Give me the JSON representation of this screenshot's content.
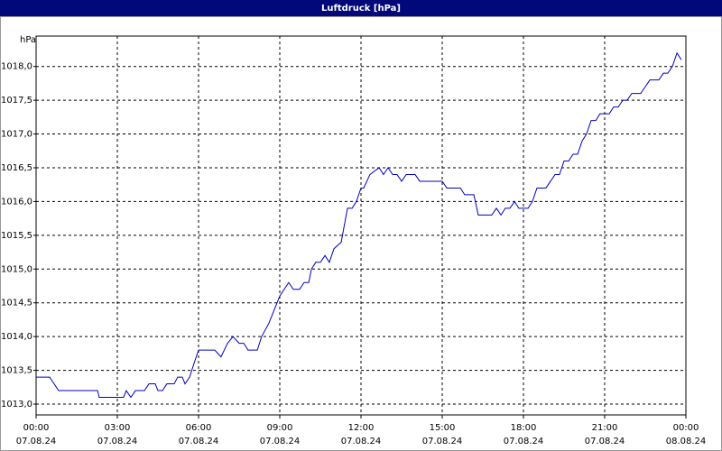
{
  "chart_data": {
    "type": "line",
    "title": "Luftdruck [hPa]",
    "y_label": "hPa",
    "x": [
      0,
      0.5,
      0.83,
      2.27,
      2.33,
      3.23,
      3.33,
      3.5,
      3.67,
      4,
      4.17,
      4.4,
      4.5,
      4.67,
      4.83,
      5.1,
      5.23,
      5.4,
      5.5,
      5.67,
      5.83,
      6,
      6.6,
      6.83,
      7.07,
      7.27,
      7.5,
      7.67,
      7.83,
      8.17,
      8.33,
      8.6,
      9,
      9.33,
      9.5,
      9.73,
      9.9,
      10.07,
      10.17,
      10.33,
      10.5,
      10.67,
      10.83,
      11,
      11.27,
      11.5,
      11.67,
      11.83,
      12,
      12.1,
      12.33,
      12.67,
      12.83,
      13,
      13.17,
      13.33,
      13.5,
      13.67,
      14,
      14.17,
      15,
      15.17,
      15.67,
      15.83,
      16.17,
      16.33,
      16.83,
      17,
      17.17,
      17.33,
      17.5,
      17.67,
      17.83,
      18.17,
      18.33,
      18.5,
      18.83,
      19,
      19.17,
      19.33,
      19.5,
      19.67,
      19.83,
      20,
      20.17,
      20.33,
      20.5,
      20.67,
      20.83,
      21.17,
      21.33,
      21.5,
      21.67,
      21.83,
      22,
      22.33,
      22.5,
      22.67,
      23,
      23.17,
      23.33,
      23.5,
      23.67,
      23.83
    ],
    "series": [
      {
        "name": "Luftdruck",
        "color": "#0000c0",
        "values": [
          1013.4,
          1013.4,
          1013.2,
          1013.2,
          1013.1,
          1013.1,
          1013.2,
          1013.1,
          1013.2,
          1013.2,
          1013.3,
          1013.3,
          1013.2,
          1013.2,
          1013.3,
          1013.3,
          1013.4,
          1013.4,
          1013.3,
          1013.4,
          1013.6,
          1013.8,
          1013.8,
          1013.7,
          1013.9,
          1014.0,
          1013.9,
          1013.9,
          1013.8,
          1013.8,
          1014.0,
          1014.2,
          1014.6,
          1014.8,
          1014.7,
          1014.7,
          1014.8,
          1014.8,
          1015.0,
          1015.1,
          1015.1,
          1015.2,
          1015.1,
          1015.3,
          1015.4,
          1015.9,
          1015.9,
          1016.0,
          1016.2,
          1016.2,
          1016.4,
          1016.5,
          1016.4,
          1016.5,
          1016.4,
          1016.4,
          1016.3,
          1016.4,
          1016.4,
          1016.3,
          1016.3,
          1016.2,
          1016.2,
          1016.1,
          1016.1,
          1015.8,
          1015.8,
          1015.9,
          1015.8,
          1015.9,
          1015.9,
          1016.0,
          1015.9,
          1015.9,
          1016.0,
          1016.2,
          1016.2,
          1016.3,
          1016.4,
          1016.4,
          1016.6,
          1016.6,
          1016.7,
          1016.7,
          1016.9,
          1017.0,
          1017.2,
          1017.2,
          1017.3,
          1017.3,
          1017.4,
          1017.4,
          1017.5,
          1017.5,
          1017.6,
          1017.6,
          1017.7,
          1017.8,
          1017.8,
          1017.9,
          1017.9,
          1018.0,
          1018.2,
          1018.1
        ]
      }
    ],
    "xlim": [
      0,
      24
    ],
    "ylim": [
      1012.84,
      1018.45
    ],
    "xticks": [
      {
        "value": 0,
        "label": "00:00",
        "date": "07.08.24"
      },
      {
        "value": 3,
        "label": "03:00",
        "date": "07.08.24"
      },
      {
        "value": 6,
        "label": "06:00",
        "date": "07.08.24"
      },
      {
        "value": 9,
        "label": "09:00",
        "date": "07.08.24"
      },
      {
        "value": 12,
        "label": "12:00",
        "date": "07.08.24"
      },
      {
        "value": 15,
        "label": "15:00",
        "date": "07.08.24"
      },
      {
        "value": 18,
        "label": "18:00",
        "date": "07.08.24"
      },
      {
        "value": 21,
        "label": "21:00",
        "date": "07.08.24"
      },
      {
        "value": 24,
        "label": "00:00",
        "date": "08.08.24"
      }
    ],
    "yticks": [
      {
        "value": 1013,
        "label": "1013,0"
      },
      {
        "value": 1013.5,
        "label": "1013,5"
      },
      {
        "value": 1014,
        "label": "1014,0"
      },
      {
        "value": 1014.5,
        "label": "1014,5"
      },
      {
        "value": 1015,
        "label": "1015,0"
      },
      {
        "value": 1015.5,
        "label": "1015,5"
      },
      {
        "value": 1016,
        "label": "1016,0"
      },
      {
        "value": 1016.5,
        "label": "1016,5"
      },
      {
        "value": 1017,
        "label": "1017,0"
      },
      {
        "value": 1017.5,
        "label": "1017,5"
      },
      {
        "value": 1018,
        "label": "1018,0"
      }
    ],
    "grid": true
  }
}
